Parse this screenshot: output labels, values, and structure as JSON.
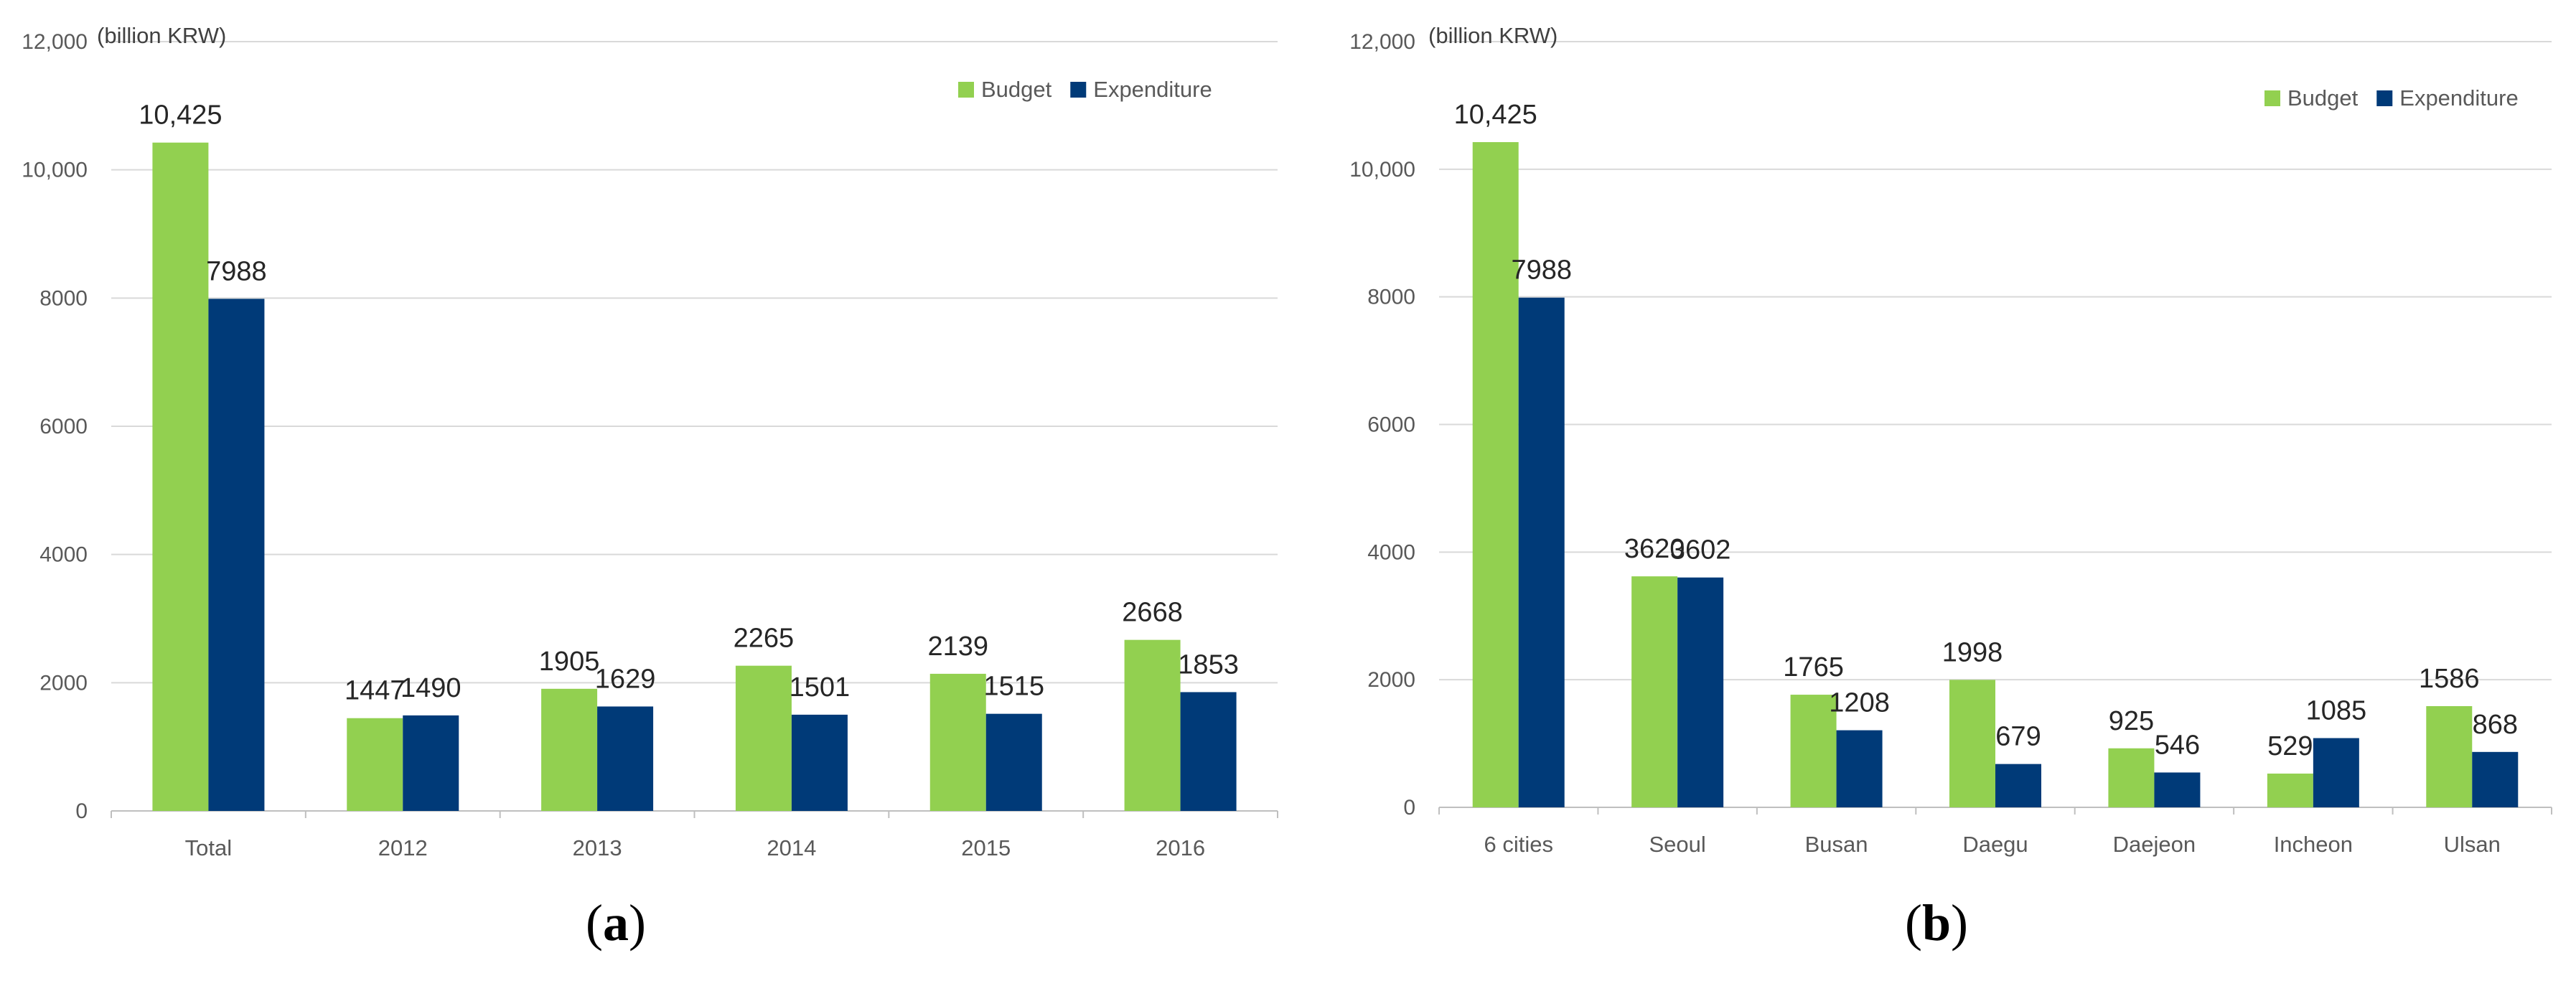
{
  "figure": {
    "panel_labels": [
      {
        "open": "(",
        "letter": "a",
        "close": ")"
      },
      {
        "open": "(",
        "letter": "b",
        "close": ")"
      }
    ]
  },
  "colors": {
    "budget": "#92d050",
    "expenditure": "#003a78",
    "gridline": "#d9d9d9",
    "axis": "#bfbfbf"
  },
  "chart_data": [
    {
      "type": "bar",
      "title": "",
      "unit_label": "(billion KRW)",
      "xlabel": "",
      "ylabel": "",
      "categories": [
        "Total",
        "2012",
        "2013",
        "2014",
        "2015",
        "2016"
      ],
      "series": [
        {
          "name": "Budget",
          "values": [
            10425,
            1447,
            1905,
            2265,
            2139,
            2668
          ],
          "labels": [
            "10,425",
            "1447",
            "1905",
            "2265",
            "2139",
            "2668"
          ]
        },
        {
          "name": "Expenditure",
          "values": [
            7988,
            1490,
            1629,
            1501,
            1515,
            1853
          ],
          "labels": [
            "7988",
            "1490",
            "1629",
            "1501",
            "1515",
            "1853"
          ]
        }
      ],
      "ylim": [
        0,
        12000
      ],
      "yticks": [
        0,
        2000,
        4000,
        6000,
        8000,
        10000,
        12000
      ],
      "ytick_labels": [
        "0",
        "2000",
        "4000",
        "6000",
        "8000",
        "10,000",
        "12,000"
      ],
      "grid": true,
      "legend_position": "top-right"
    },
    {
      "type": "bar",
      "title": "",
      "unit_label": "(billion KRW)",
      "xlabel": "",
      "ylabel": "",
      "categories": [
        "6 cities",
        "Seoul",
        "Busan",
        "Daegu",
        "Daejeon",
        "Incheon",
        "Ulsan"
      ],
      "series": [
        {
          "name": "Budget",
          "values": [
            10425,
            3620,
            1765,
            1998,
            925,
            529,
            1586
          ],
          "labels": [
            "10,425",
            "3620",
            "1765",
            "1998",
            "925",
            "529",
            "1586"
          ]
        },
        {
          "name": "Expenditure",
          "values": [
            7988,
            3602,
            1208,
            679,
            546,
            1085,
            868
          ],
          "labels": [
            "7988",
            "3602",
            "1208",
            "679",
            "546",
            "1085",
            "868"
          ]
        }
      ],
      "ylim": [
        0,
        12000
      ],
      "yticks": [
        0,
        2000,
        4000,
        6000,
        8000,
        10000,
        12000
      ],
      "ytick_labels": [
        "0",
        "2000",
        "4000",
        "6000",
        "8000",
        "10,000",
        "12,000"
      ],
      "grid": true,
      "legend_position": "top-right"
    }
  ]
}
